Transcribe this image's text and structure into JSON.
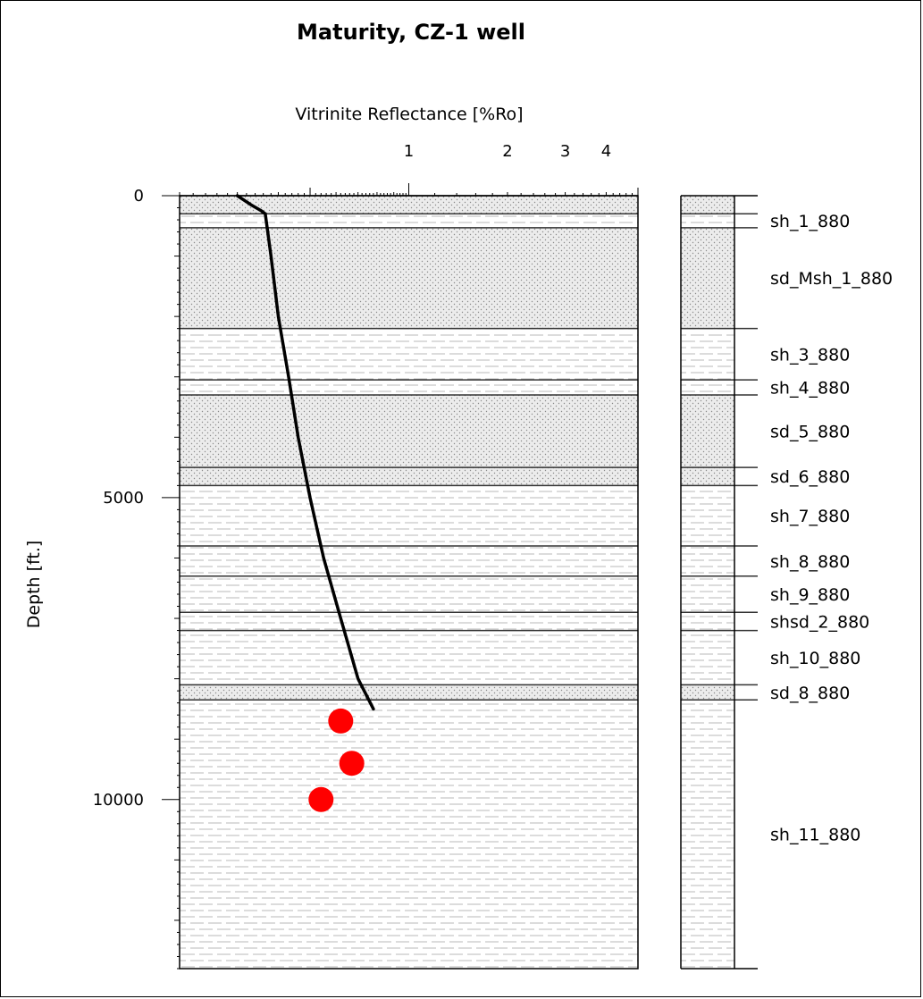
{
  "chart_data": {
    "type": "line",
    "title": "Maturity, CZ-1 well",
    "xlabel": "Vitrinite Reflectance [%Ro]",
    "ylabel": "Depth [ft.]",
    "x_scale": "log",
    "x_tick_labels": [
      "1",
      "2",
      "3",
      "4"
    ],
    "x_ticks": [
      1,
      2,
      3,
      4
    ],
    "y_tick_labels": [
      "0",
      "5000",
      "10000"
    ],
    "y_ticks": [
      0,
      5000,
      10000
    ],
    "ylim": [
      0,
      12800
    ],
    "xlim": [
      0.2,
      5
    ],
    "grid": false,
    "series": [
      {
        "type": "line",
        "x": [
          0.3,
          0.33,
          0.355,
          0.365,
          0.38,
          0.4,
          0.43,
          0.46,
          0.5,
          0.55,
          0.62,
          0.7,
          0.78
        ],
        "y": [
          0,
          150,
          250,
          300,
          1000,
          2000,
          3000,
          4000,
          5000,
          6000,
          7000,
          8000,
          8500
        ]
      },
      {
        "type": "scatter",
        "color": "#ff0000",
        "x": [
          0.62,
          0.67,
          0.54
        ],
        "y": [
          8700,
          9400,
          10000
        ]
      }
    ],
    "formations": [
      {
        "name": "sh_1_880",
        "top": 300,
        "bottom": 530,
        "lithology": "shale"
      },
      {
        "name": "sd_Msh_1_880",
        "top": 530,
        "bottom": 2200,
        "lithology": "sand"
      },
      {
        "name": "sh_3_880",
        "top": 2200,
        "bottom": 3050,
        "lithology": "shale"
      },
      {
        "name": "sh_4_880",
        "top": 3050,
        "bottom": 3300,
        "lithology": "shale"
      },
      {
        "name": "sd_5_880",
        "top": 3300,
        "bottom": 4500,
        "lithology": "sand"
      },
      {
        "name": "sd_6_880",
        "top": 4500,
        "bottom": 4800,
        "lithology": "sand"
      },
      {
        "name": "sh_7_880",
        "top": 4800,
        "bottom": 5800,
        "lithology": "shale"
      },
      {
        "name": "sh_8_880",
        "top": 5800,
        "bottom": 6300,
        "lithology": "shale"
      },
      {
        "name": "sh_9_880",
        "top": 6300,
        "bottom": 6900,
        "lithology": "shale"
      },
      {
        "name": "shsd_2_880",
        "top": 6900,
        "bottom": 7200,
        "lithology": "shale"
      },
      {
        "name": "sh_10_880",
        "top": 7200,
        "bottom": 8100,
        "lithology": "shale"
      },
      {
        "name": "sd_8_880",
        "top": 8100,
        "bottom": 8350,
        "lithology": "sand"
      },
      {
        "name": "sh_11_880",
        "top": 8350,
        "bottom": 12800,
        "lithology": "shale"
      }
    ]
  }
}
